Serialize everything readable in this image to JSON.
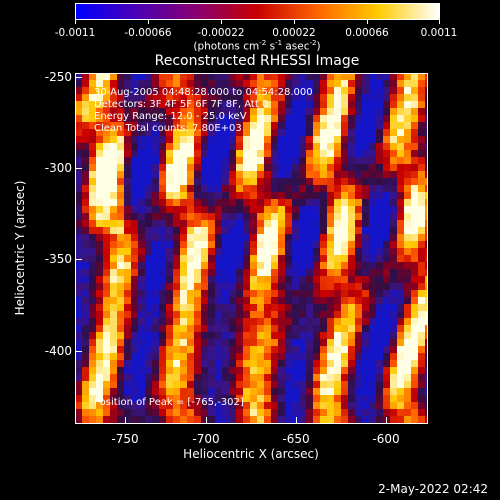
{
  "colorbar": {
    "tick_labels": [
      "-0.0011",
      "-0.00066",
      "-0.00022",
      "0.00022",
      "0.00066",
      "0.0011"
    ],
    "units_text": "(photons cm",
    "units_exp1": "-2",
    "units_mid": " s",
    "units_exp2": "-1",
    "units_mid2": " asec",
    "units_exp3": "-2",
    "units_end": ")",
    "colors": [
      "#0000ff",
      "#4b00b5",
      "#8a0070",
      "#c80000",
      "#ff6600",
      "#ffcc00",
      "#ffffff"
    ]
  },
  "title": "Reconstructed RHESSI Image",
  "info_lines": [
    "30-Aug-2005 04:48:28.000 to 04:54:28.000",
    "Detectors: 3F 4F 5F 6F 7F 8F, Att 0",
    "Energy Range: 12.0 - 25.0 keV",
    "Clean     Total counts: 7.80E+03"
  ],
  "peak_text": "Position of Peak = [-765,-302]",
  "axes": {
    "x_title": "Heliocentric X (arcsec)",
    "y_title": "Heliocentric Y (arcsec)",
    "x_ticks": [
      "-750",
      "-700",
      "-650",
      "-600"
    ],
    "y_ticks": [
      "-250",
      "-300",
      "-350",
      "-400"
    ],
    "x_range": [
      -777,
      -580
    ],
    "y_range": [
      -248,
      -443
    ]
  },
  "timestamp": "2-May-2022 02:42"
}
